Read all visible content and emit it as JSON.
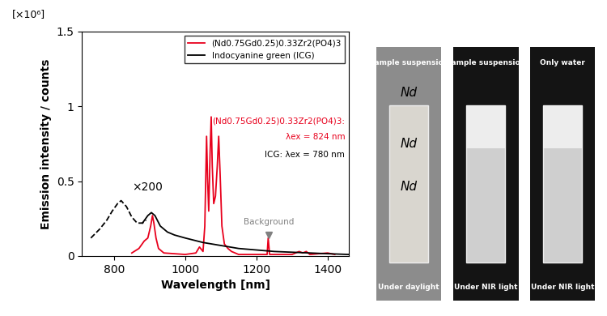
{
  "chart_data": {
    "type": "line",
    "y_unit_label": "[×10⁶]",
    "x_label": "Wavelength [nm]",
    "y_label": "Emission intensity / counts",
    "xlim": [
      710,
      1460
    ],
    "xticks": [
      800,
      1000,
      1200,
      1400
    ],
    "ylim": [
      0,
      1.5
    ],
    "yticks": [
      0,
      0.5,
      1,
      1.5
    ],
    "grid": false,
    "legend": "upper right",
    "series": [
      {
        "name": "(Nd0.75Gd0.25)0.33Zr2(PO4)3",
        "color": "#e8001c",
        "line_style": "solid",
        "x": [
          850,
          870,
          885,
          895,
          903,
          908,
          912,
          918,
          925,
          940,
          1000,
          1030,
          1040,
          1050,
          1055,
          1060,
          1063,
          1066,
          1070,
          1073,
          1076,
          1080,
          1085,
          1090,
          1094,
          1098,
          1103,
          1110,
          1120,
          1130,
          1150,
          1200,
          1230,
          1233,
          1237,
          1300,
          1320,
          1330,
          1340,
          1350,
          1400,
          1420
        ],
        "values": [
          0.02,
          0.05,
          0.1,
          0.12,
          0.2,
          0.27,
          0.22,
          0.12,
          0.05,
          0.02,
          0.01,
          0.02,
          0.06,
          0.03,
          0.2,
          0.8,
          0.5,
          0.3,
          0.7,
          0.93,
          0.6,
          0.35,
          0.4,
          0.6,
          0.8,
          0.55,
          0.2,
          0.08,
          0.05,
          0.03,
          0.01,
          0.01,
          0.01,
          0.12,
          0.01,
          0.01,
          0.03,
          0.02,
          0.03,
          0.01,
          0.02,
          0.01
        ]
      },
      {
        "name": "Indocyanine green (ICG)",
        "color": "#000000",
        "line_style": "solid",
        "x": [
          880,
          895,
          905,
          915,
          930,
          950,
          970,
          1000,
          1050,
          1100,
          1150,
          1200,
          1250,
          1300,
          1350,
          1400,
          1460
        ],
        "values": [
          0.22,
          0.27,
          0.29,
          0.27,
          0.2,
          0.16,
          0.14,
          0.12,
          0.09,
          0.07,
          0.05,
          0.04,
          0.03,
          0.025,
          0.02,
          0.015,
          0.01
        ]
      },
      {
        "color": "#000000",
        "line_style": "dashed",
        "x": [
          735,
          760,
          780,
          795,
          810,
          820,
          835,
          850,
          865,
          880,
          890
        ],
        "values": [
          0.12,
          0.18,
          0.24,
          0.3,
          0.35,
          0.37,
          0.33,
          0.26,
          0.22,
          0.22,
          0.24
        ]
      }
    ],
    "annotations": [
      {
        "text": "(Nd0.75Gd0.25)0.33Zr2(PO4)3:",
        "color": "#e8001c"
      },
      {
        "text": "λex = 824 nm",
        "color": "#e8001c"
      },
      {
        "text": "ICG: λex = 780 nm",
        "color": "#000000"
      },
      {
        "text": "×200",
        "color": "#000000",
        "x": 850,
        "y": 0.42
      },
      {
        "text": "Background",
        "color": "#808080",
        "x": 1235,
        "y": 0.14,
        "marker": "v"
      }
    ]
  },
  "photos": [
    {
      "top": "Sample suspension",
      "bottom": "Under daylight",
      "marks": [
        "Nd",
        "Nd",
        "Nd"
      ]
    },
    {
      "top": "Sample suspension",
      "bottom": "Under NIR light"
    },
    {
      "top": "Only water",
      "bottom": "Under NIR light"
    }
  ]
}
